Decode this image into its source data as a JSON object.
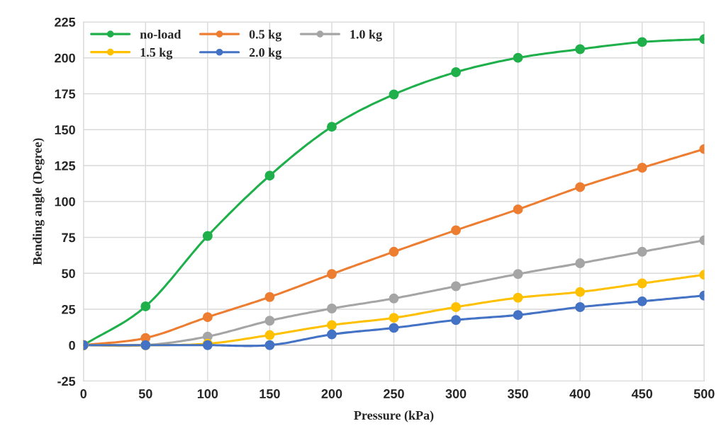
{
  "chart_data": {
    "type": "line",
    "xlabel": "Pressure (kPa)",
    "ylabel": "Bending angle (Degree)",
    "x": [
      0,
      50,
      100,
      150,
      200,
      250,
      300,
      350,
      400,
      450,
      500
    ],
    "series": [
      {
        "name": "no-load",
        "color": "#1fb04b",
        "values": [
          0,
          27,
          76,
          118,
          152,
          174.5,
          190,
          200,
          206,
          211,
          213
        ]
      },
      {
        "name": "0.5 kg",
        "color": "#ed7d31",
        "values": [
          0,
          5,
          19.5,
          33.5,
          49.5,
          65,
          80,
          94.5,
          110,
          123.5,
          136.5
        ]
      },
      {
        "name": "1.0 kg",
        "color": "#a5a5a5",
        "values": [
          0,
          0,
          6,
          17,
          25.5,
          32.5,
          41,
          49.5,
          57,
          65,
          73
        ]
      },
      {
        "name": "1.5 kg",
        "color": "#ffc000",
        "values": [
          0,
          0,
          1,
          7,
          14,
          19,
          26.5,
          33,
          37,
          43,
          49
        ]
      },
      {
        "name": "2.0 kg",
        "color": "#4472c4",
        "values": [
          0,
          0,
          0,
          0,
          7.5,
          12,
          17.5,
          21,
          26.5,
          30.5,
          34.5
        ]
      }
    ],
    "xlim": [
      0,
      500
    ],
    "xticks": [
      0,
      50,
      100,
      150,
      200,
      250,
      300,
      350,
      400,
      450,
      500
    ],
    "ylim": [
      -25,
      225
    ],
    "yticks": [
      -25,
      0,
      25,
      50,
      75,
      100,
      125,
      150,
      175,
      200,
      225
    ],
    "grid": true,
    "legend": "top left",
    "marker": "circle",
    "line_style": "solid"
  }
}
